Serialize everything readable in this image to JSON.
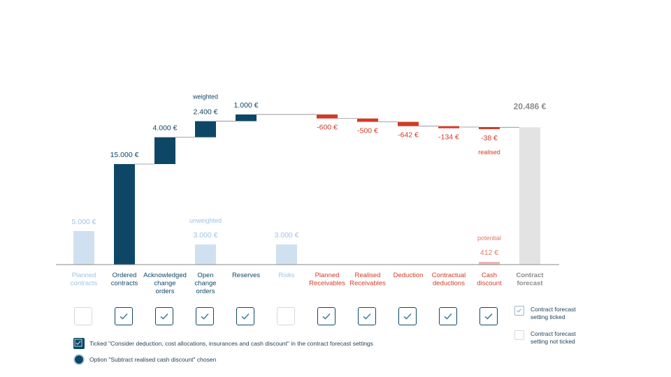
{
  "colors": {
    "dark": "#0e4766",
    "light": "#cfe0f1",
    "light_text": "#9ec3e6",
    "red": "#d13b25",
    "red_light": "#e8b8ae",
    "grey": "#e3e3e3",
    "grey_text": "#8c8c8c",
    "axis": "#8a8a8a"
  },
  "chart_data": {
    "type": "waterfall",
    "unit": "€",
    "ylim": [
      0,
      21000
    ],
    "categories": [
      {
        "label": "Planned contracts",
        "value": 5000,
        "value_label": "5.000 €",
        "kind": "excluded"
      },
      {
        "label": "Ordered contracts",
        "value": 15000,
        "value_label": "15.000 €",
        "kind": "positive"
      },
      {
        "label": "Acknowledged change orders",
        "value": 4000,
        "value_label": "4.000 €",
        "kind": "positive"
      },
      {
        "label": "Open change orders",
        "value": 2400,
        "value_label": "2.400 €",
        "kind": "positive",
        "note": "weighted",
        "excluded_value": 3000,
        "excluded_value_label": "3.000 €",
        "excluded_note": "unweighted"
      },
      {
        "label": "Reserves",
        "value": 1000,
        "value_label": "1.000 €",
        "kind": "positive"
      },
      {
        "label": "Risks",
        "value": 3000,
        "value_label": "3.000 €",
        "kind": "excluded"
      },
      {
        "label": "Planned Receivables",
        "value": -600,
        "value_label": "-600 €",
        "kind": "negative"
      },
      {
        "label": "Realised Receivables",
        "value": -500,
        "value_label": "-500 €",
        "kind": "negative"
      },
      {
        "label": "Deduction",
        "value": -642,
        "value_label": "-642 €",
        "kind": "negative"
      },
      {
        "label": "Contractual deductions",
        "value": -134,
        "value_label": "-134 €",
        "kind": "negative"
      },
      {
        "label": "Cash discount",
        "value": -38,
        "value_label": "-38 €",
        "kind": "negative",
        "note": "realised",
        "excluded_value": 412,
        "excluded_value_label": "412 €",
        "excluded_note": "potential"
      },
      {
        "label": "Contract forecast",
        "value": 20486,
        "value_label": "20.486 €",
        "kind": "total"
      }
    ],
    "settings_ticked": [
      false,
      true,
      true,
      true,
      true,
      false,
      true,
      true,
      true,
      true,
      true
    ]
  },
  "legend": {
    "ticked": "Contract forecast setting ticked",
    "not_ticked": "Contract forecast setting not ticked"
  },
  "notes": {
    "ticked_consider": "Ticked \"Consider deduction, cost allocations, insurances and cash discount\" in the contract forecast settings",
    "option_subtract": "Option \"Subtract realised cash discount\" chosen"
  }
}
